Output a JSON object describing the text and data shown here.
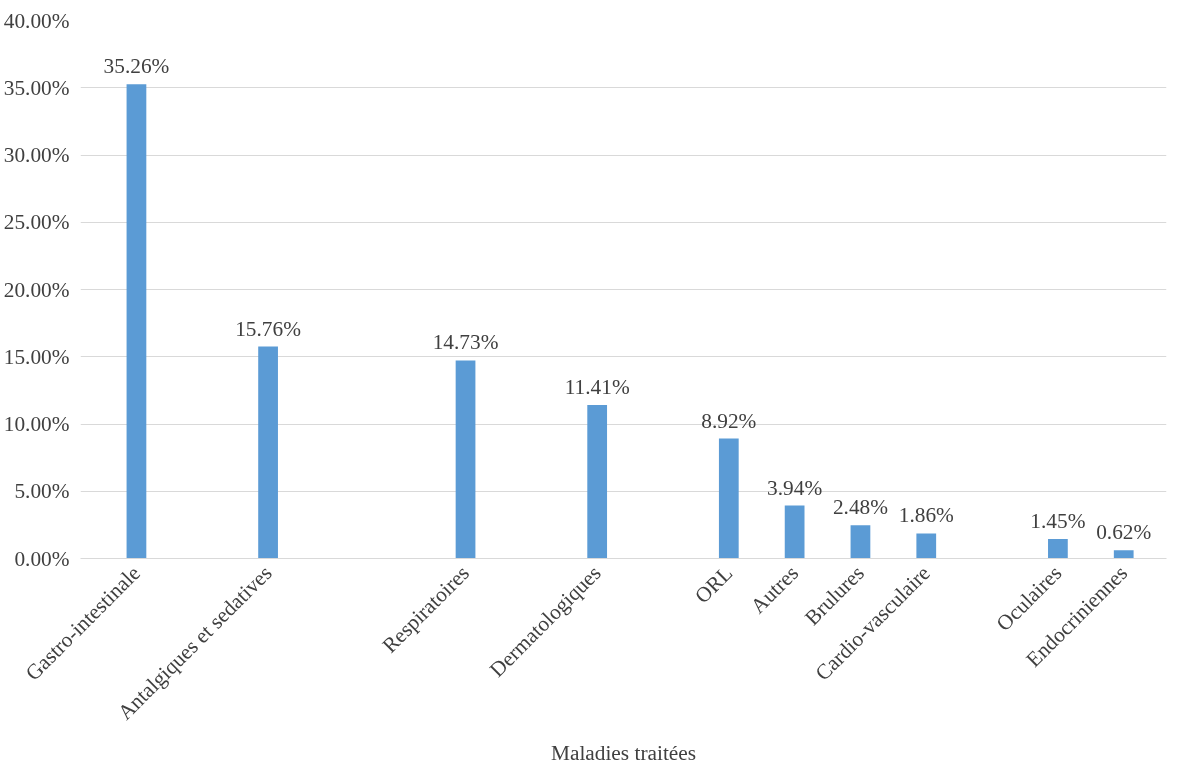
{
  "chart_data": {
    "type": "bar",
    "xlabel": "Maladies traitées",
    "categories": [
      "Gastro-intestinale",
      null,
      "Antalgiques et sedatives",
      null,
      null,
      "Respiratoires",
      null,
      "Dermatologiques",
      null,
      "ORL",
      "Autres",
      "Brulures",
      "Cardio-vasculaire",
      null,
      "Oculaires",
      "Endocriniennes"
    ],
    "values": [
      35.26,
      null,
      15.76,
      null,
      null,
      14.73,
      null,
      11.41,
      null,
      8.92,
      3.94,
      2.48,
      1.86,
      null,
      1.45,
      0.62
    ],
    "value_labels": [
      "35.26%",
      null,
      "15.76%",
      null,
      null,
      "14.73%",
      null,
      "11.41%",
      null,
      "8.92%",
      "3.94%",
      "2.48%",
      "1.86%",
      null,
      "1.45%",
      "0.62%"
    ],
    "color": "#5b9bd5",
    "ylim": [
      0,
      40
    ],
    "yticks": [
      {
        "value": 0,
        "label": "0.00%"
      },
      {
        "value": 5,
        "label": "5.00%"
      },
      {
        "value": 10,
        "label": "10.00%"
      },
      {
        "value": 15,
        "label": "15.00%"
      },
      {
        "value": 20,
        "label": "20.00%"
      },
      {
        "value": 25,
        "label": "25.00%"
      },
      {
        "value": 30,
        "label": "30.00%"
      },
      {
        "value": 35,
        "label": "35.00%"
      },
      {
        "value": 40,
        "label": "40.00%"
      }
    ],
    "grid": "y"
  }
}
